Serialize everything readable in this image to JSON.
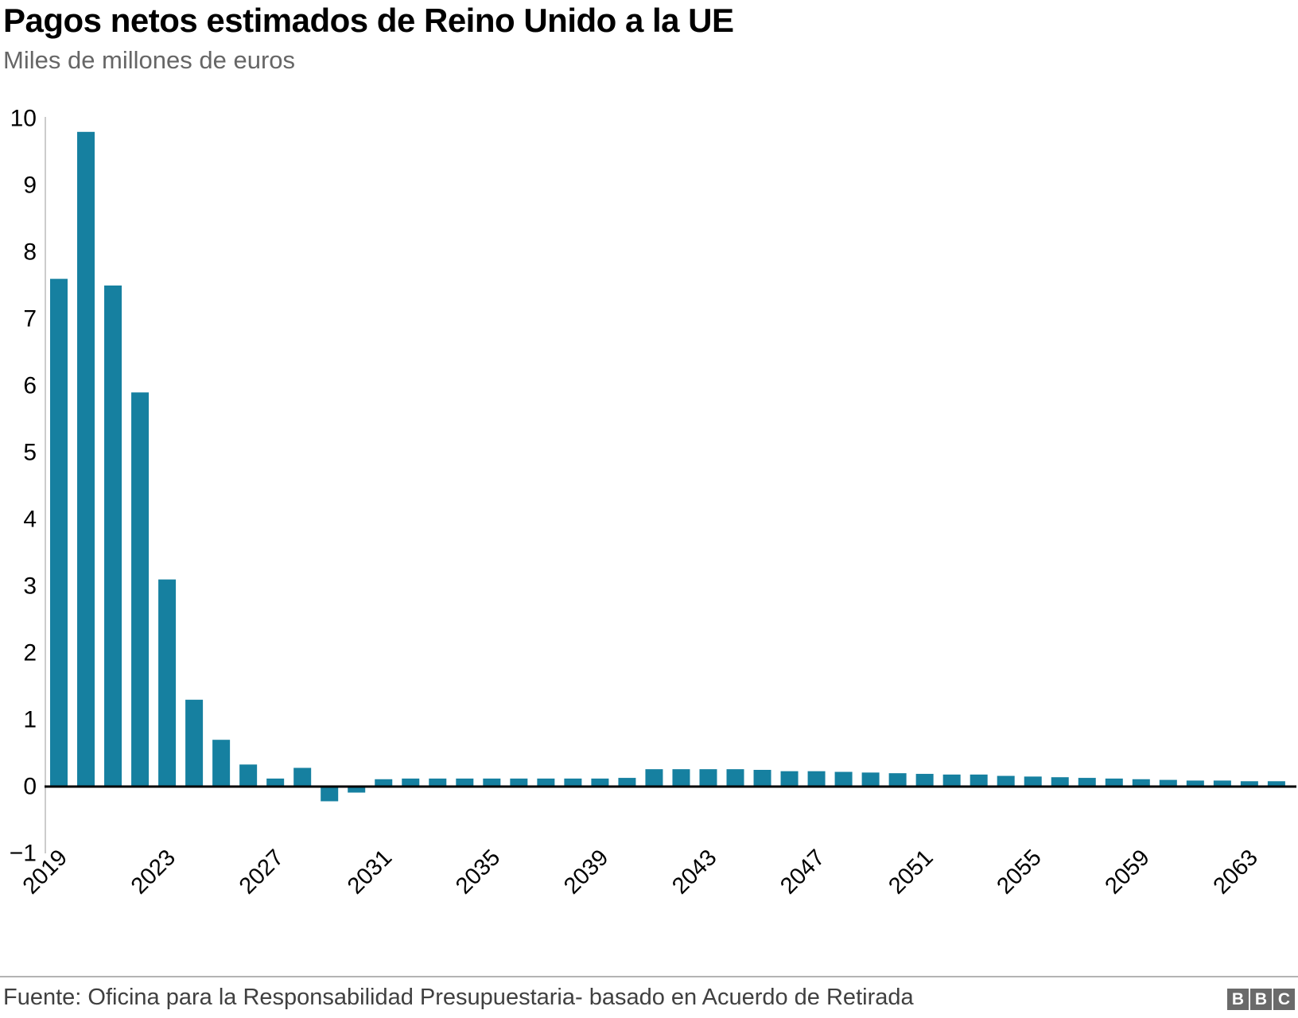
{
  "header": {
    "title": "Pagos netos estimados de Reino Unido a la UE",
    "subtitle": "Miles de millones de euros"
  },
  "chart_data": {
    "type": "bar",
    "title": "Pagos netos estimados de Reino Unido a la UE",
    "ylabel": "Miles de millones de euros",
    "xlabel": "",
    "x": [
      2019,
      2020,
      2021,
      2022,
      2023,
      2024,
      2025,
      2026,
      2027,
      2028,
      2029,
      2030,
      2031,
      2032,
      2033,
      2034,
      2035,
      2036,
      2037,
      2038,
      2039,
      2040,
      2041,
      2042,
      2043,
      2044,
      2045,
      2046,
      2047,
      2048,
      2049,
      2050,
      2051,
      2052,
      2053,
      2054,
      2055,
      2056,
      2057,
      2058,
      2059,
      2060,
      2061,
      2062,
      2063,
      2064
    ],
    "values": [
      7.6,
      9.8,
      7.5,
      5.9,
      3.1,
      1.3,
      0.7,
      0.33,
      0.12,
      0.28,
      -0.22,
      -0.09,
      0.11,
      0.12,
      0.12,
      0.12,
      0.12,
      0.12,
      0.12,
      0.12,
      0.12,
      0.13,
      0.26,
      0.26,
      0.26,
      0.26,
      0.25,
      0.23,
      0.23,
      0.22,
      0.21,
      0.2,
      0.19,
      0.18,
      0.18,
      0.16,
      0.15,
      0.14,
      0.13,
      0.12,
      0.11,
      0.1,
      0.09,
      0.09,
      0.08,
      0.08
    ],
    "ylim": [
      -1,
      10
    ],
    "yticks": [
      10,
      9,
      8,
      7,
      6,
      5,
      4,
      3,
      2,
      1,
      0,
      -1
    ],
    "xticks": [
      2019,
      2023,
      2027,
      2031,
      2035,
      2039,
      2043,
      2047,
      2051,
      2055,
      2059,
      2063
    ],
    "grid": false,
    "legend": "none",
    "bar_color": "#1680A0",
    "zero_line_color": "#000000",
    "y_axis_line_color": "#cccccc",
    "tick_label_color": "#000000"
  },
  "footer": {
    "source": "Fuente: Oficina para la Responsabilidad Presupuestaria- basado en Acuerdo de Retirada",
    "logo_letters": [
      "B",
      "B",
      "C"
    ]
  }
}
